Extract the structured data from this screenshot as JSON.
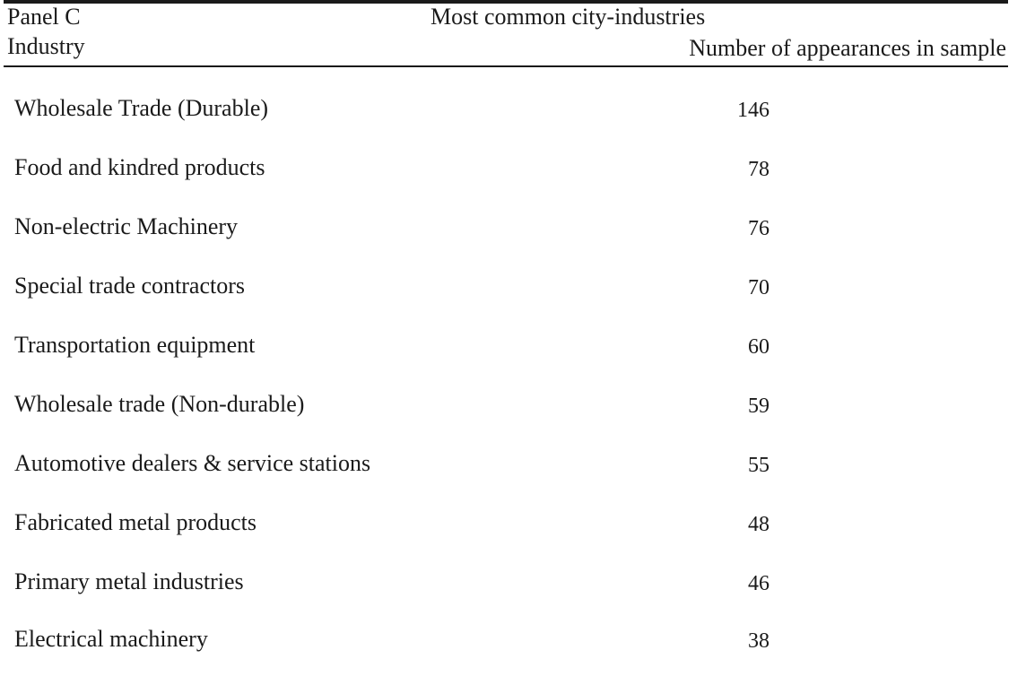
{
  "table": {
    "panel_label": "Panel C",
    "title": "Most common city-industries",
    "column_industry": "Industry",
    "column_count": "Number of appearances in sample",
    "rows": [
      {
        "industry": "Wholesale Trade (Durable)",
        "count": "146"
      },
      {
        "industry": "Food and kindred products",
        "count": "78"
      },
      {
        "industry": "Non-electric Machinery",
        "count": "76"
      },
      {
        "industry": "Special trade contractors",
        "count": "70"
      },
      {
        "industry": "Transportation equipment",
        "count": "60"
      },
      {
        "industry": "Wholesale trade (Non-durable)",
        "count": "59"
      },
      {
        "industry": "Automotive dealers & service stations",
        "count": "55"
      },
      {
        "industry": "Fabricated metal products",
        "count": "48"
      },
      {
        "industry": "Primary metal industries",
        "count": "46"
      },
      {
        "industry": "Electrical machinery",
        "count": "38"
      }
    ]
  }
}
